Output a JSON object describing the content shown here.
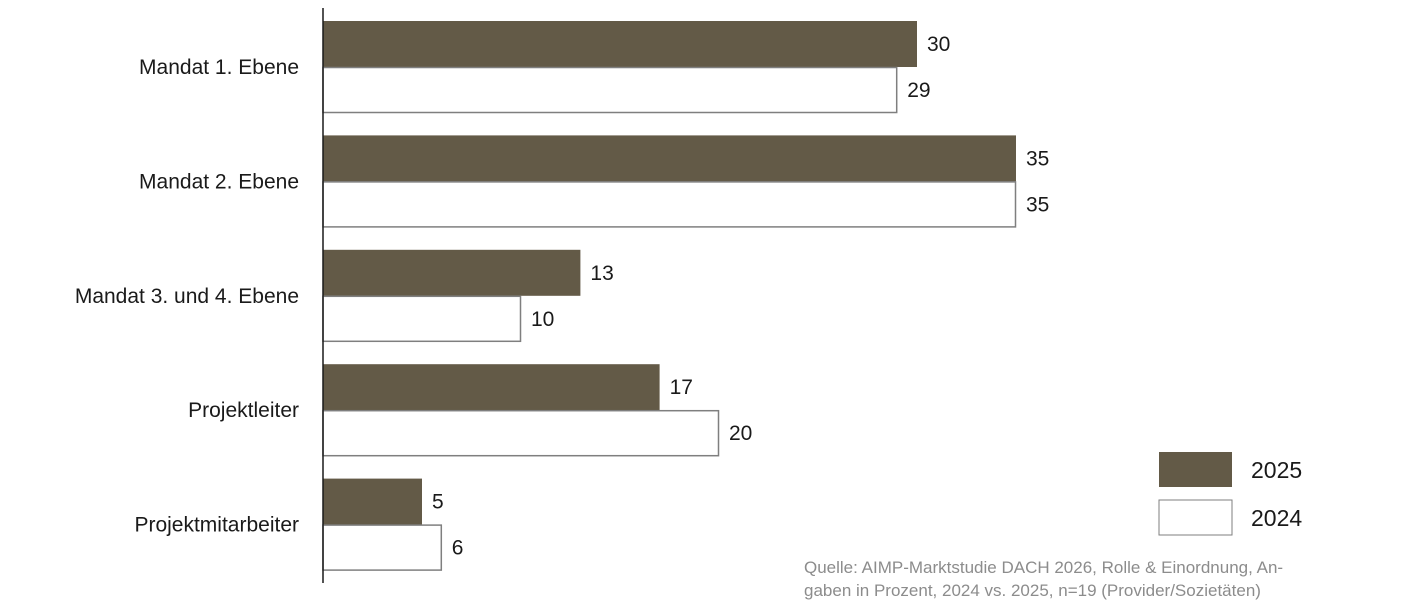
{
  "chart_data": {
    "type": "bar",
    "orientation": "horizontal",
    "categories": [
      "Mandat 1. Ebene",
      "Mandat 2. Ebene",
      "Mandat 3. und 4. Ebene",
      "Projektleiter",
      "Projektmitarbeiter"
    ],
    "series": [
      {
        "name": "2025",
        "values": [
          30,
          35,
          13,
          17,
          5
        ],
        "color": "#635a47"
      },
      {
        "name": "2024",
        "values": [
          29,
          35,
          10,
          20,
          6
        ],
        "color": "#ffffff"
      }
    ],
    "xlim": [
      0,
      35
    ],
    "grid": false,
    "legend_position": "bottom-right",
    "data_labels": true
  },
  "source": {
    "line1": "Quelle: AIMP-Marktstudie DACH 2026, Rolle & Einordnung, An-",
    "line2": "gaben in Prozent, 2024 vs. 2025, n=19 (Provider/Sozietäten)"
  },
  "colors": {
    "bar_2025": "#635a47",
    "bar_2024_fill": "#ffffff",
    "bar_2024_stroke": "#7f7f7f",
    "axis": "#1a1a1a",
    "text": "#1a1a1a",
    "source_text": "#8c8c8c"
  }
}
